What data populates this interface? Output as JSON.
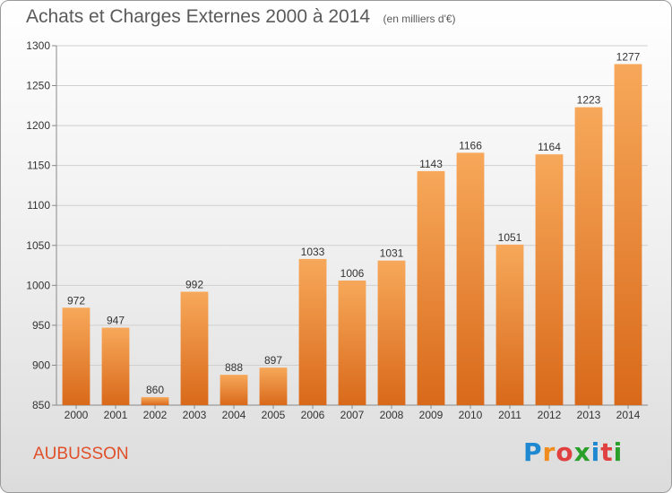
{
  "title": "Achats et Charges Externes 2000 à 2014",
  "unit_note": "(en milliers d'€)",
  "commune": "AUBUSSON",
  "brand": {
    "letters": [
      "P",
      "r",
      "o",
      "x",
      "i",
      "t",
      "i"
    ],
    "colors": [
      "#1e88d0",
      "#f08c1e",
      "#e04040",
      "#2aa02a",
      "#1e88d0",
      "#e04040",
      "#2aa02a"
    ]
  },
  "colors": {
    "bar": "#f0882e",
    "bar_light": "#f7a85a",
    "bar_dark": "#d9691a",
    "title": "#5a5a5a",
    "commune": "#e0502a"
  },
  "chart_data": {
    "type": "bar",
    "title": "Achats et Charges Externes 2000 à 2014",
    "subtitle": "(en milliers d'€)",
    "categories": [
      "2000",
      "2001",
      "2002",
      "2003",
      "2004",
      "2005",
      "2006",
      "2007",
      "2008",
      "2009",
      "2010",
      "2011",
      "2012",
      "2013",
      "2014"
    ],
    "values": [
      972,
      947,
      860,
      992,
      888,
      897,
      1033,
      1006,
      1031,
      1143,
      1166,
      1051,
      1164,
      1223,
      1277
    ],
    "yticks": [
      850,
      900,
      950,
      1000,
      1050,
      1100,
      1150,
      1200,
      1250,
      1300
    ],
    "ylim": [
      850,
      1300
    ],
    "grid": true,
    "legend": "none"
  }
}
